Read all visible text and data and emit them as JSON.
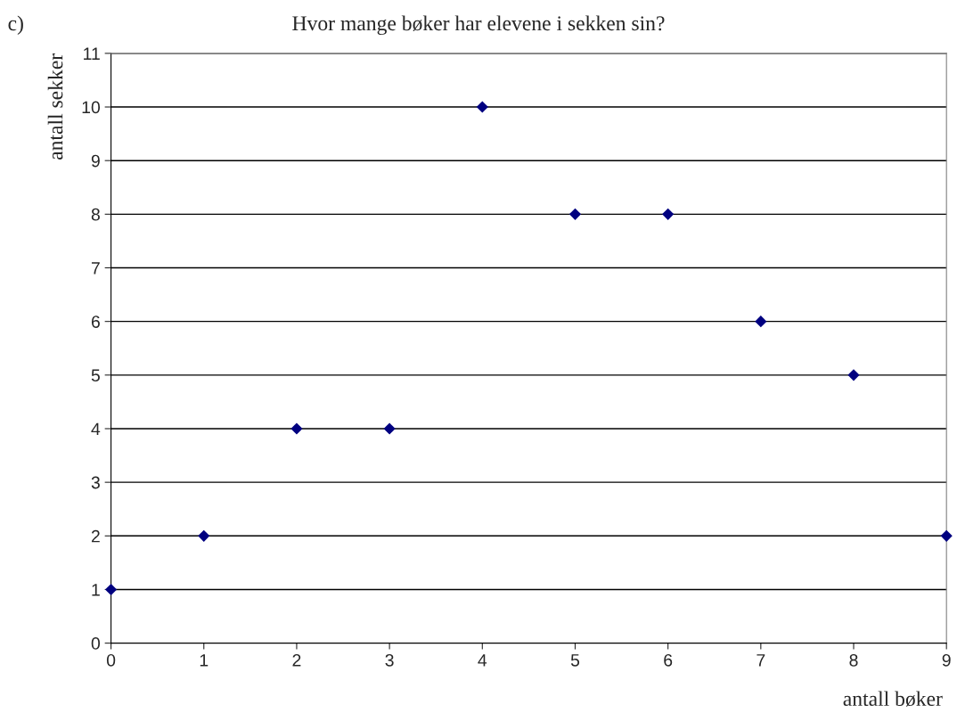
{
  "chart_data": {
    "type": "scatter",
    "title": "Hvor mange bøker har elevene i sekken sin?",
    "xlabel": "antall bøker",
    "ylabel": "antall sekker",
    "annotations": [
      "c)"
    ],
    "x": [
      0,
      1,
      2,
      3,
      4,
      5,
      6,
      7,
      8,
      9
    ],
    "series": [
      {
        "color": "#000080",
        "values": [
          1,
          2,
          4,
          4,
          10,
          8,
          8,
          6,
          5,
          2
        ]
      }
    ],
    "xlim": [
      0,
      9
    ],
    "ylim": [
      0,
      11
    ],
    "xticks": [
      0,
      1,
      2,
      3,
      4,
      5,
      6,
      7,
      8,
      9
    ],
    "yticks": [
      0,
      1,
      2,
      3,
      4,
      5,
      6,
      7,
      8,
      9,
      10,
      11
    ],
    "grid": "y",
    "marker": "diamond",
    "legend": false
  }
}
